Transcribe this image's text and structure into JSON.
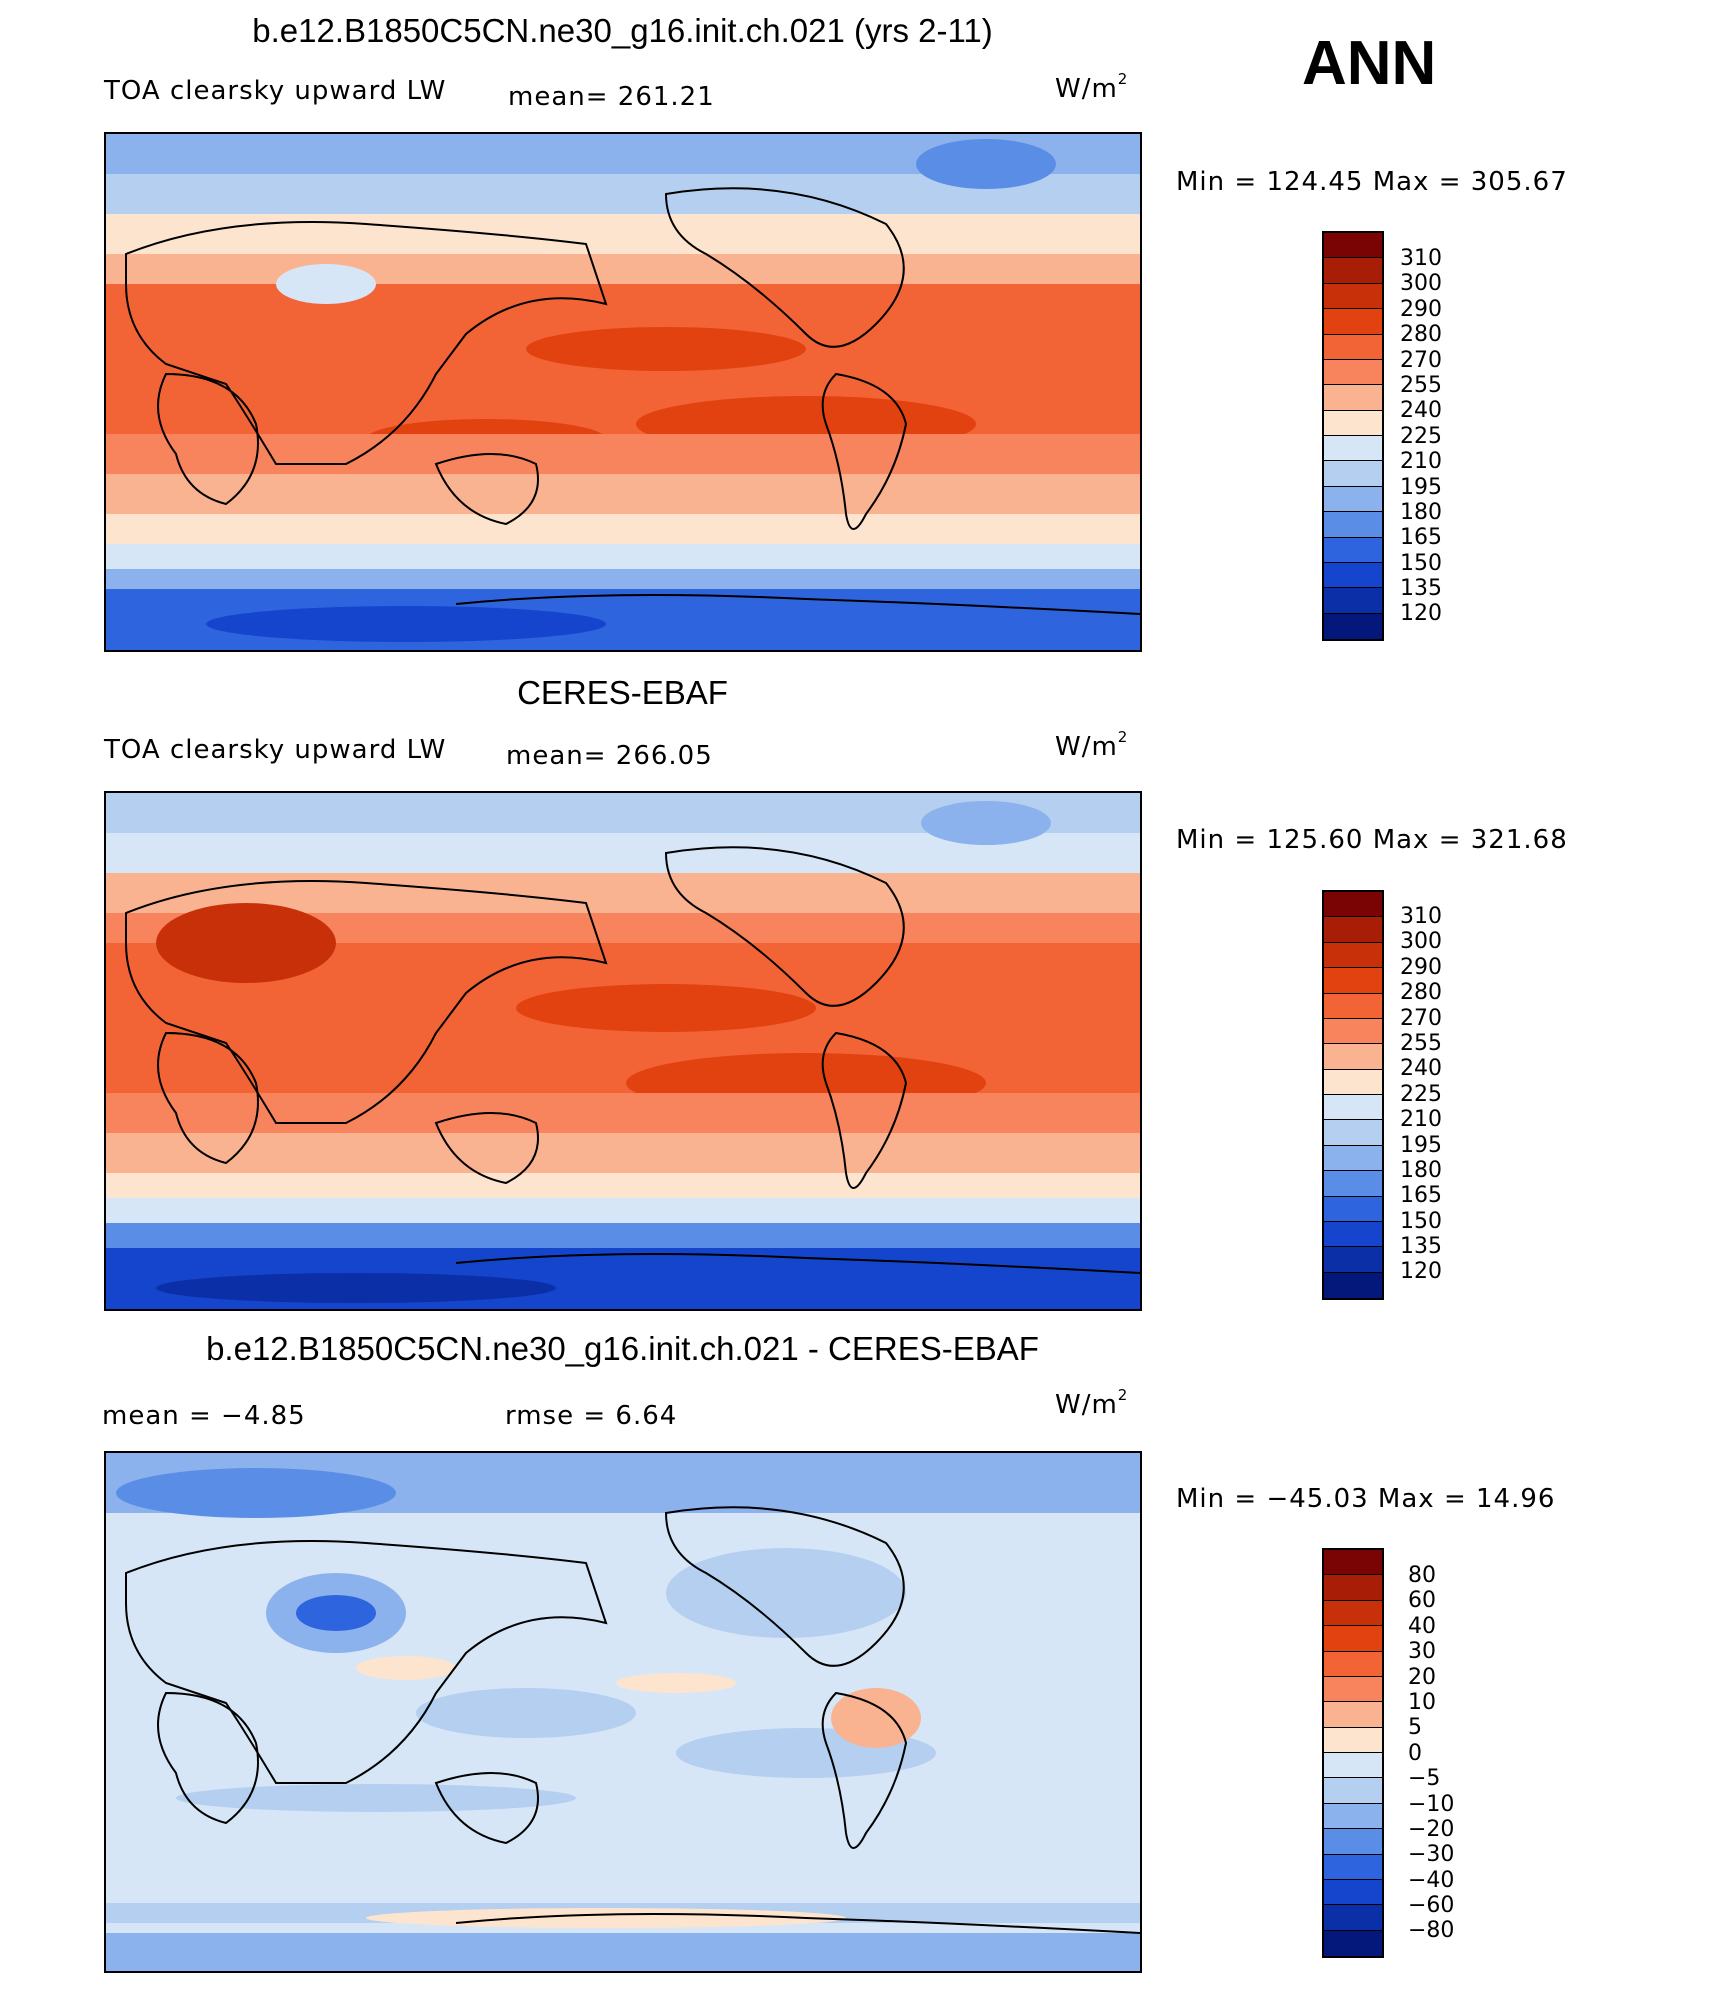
{
  "season": "ANN",
  "panels": [
    {
      "title": "b.e12.B1850C5CN.ne30_g16.init.ch.021 (yrs 2-11)",
      "left_label": "TOA clearsky upward LW",
      "center_label": "mean=  261.21",
      "units": "W/m",
      "units_sup": "2",
      "minmax": "Min  =  124.45  Max  =  305.67",
      "scheme": "abs",
      "colorbar_labels": [
        "310",
        "300",
        "290",
        "280",
        "270",
        "255",
        "240",
        "225",
        "210",
        "195",
        "180",
        "165",
        "150",
        "135",
        "120"
      ]
    },
    {
      "title": "CERES-EBAF",
      "left_label": "TOA clearsky upward LW",
      "center_label": "mean=  266.05",
      "units": "W/m",
      "units_sup": "2",
      "minmax": "Min  =  125.60  Max  =  321.68",
      "scheme": "abs",
      "colorbar_labels": [
        "310",
        "300",
        "290",
        "280",
        "270",
        "255",
        "240",
        "225",
        "210",
        "195",
        "180",
        "165",
        "150",
        "135",
        "120"
      ]
    },
    {
      "title": "b.e12.B1850C5CN.ne30_g16.init.ch.021 - CERES-EBAF",
      "left_label": "mean  =    −4.85",
      "center_label": "rmse  =     6.64",
      "units": "W/m",
      "units_sup": "2",
      "minmax": "Min  =  −45.03  Max  =    14.96",
      "scheme": "diff",
      "colorbar_labels": [
        "80",
        "60",
        "40",
        "30",
        "20",
        "10",
        "5",
        "0",
        "−5",
        "−10",
        "−20",
        "−30",
        "−40",
        "−60",
        "−80"
      ]
    }
  ],
  "colors": {
    "abs": [
      "#7a0403",
      "#a81d05",
      "#c8300a",
      "#e2420f",
      "#f26436",
      "#f7845c",
      "#fab391",
      "#fde4cf",
      "#d6e6f6",
      "#b4cff0",
      "#8bb2ec",
      "#5a8ee6",
      "#2e64de",
      "#1545cc",
      "#0a2fa6",
      "#03187a"
    ],
    "diff": [
      "#7a0403",
      "#a81d05",
      "#c8300a",
      "#e2420f",
      "#f26436",
      "#f7845c",
      "#fab391",
      "#fde4cf",
      "#d6e6f6",
      "#b4cff0",
      "#8bb2ec",
      "#5a8ee6",
      "#2e64de",
      "#1545cc",
      "#0a2fa6",
      "#03187a"
    ]
  }
}
